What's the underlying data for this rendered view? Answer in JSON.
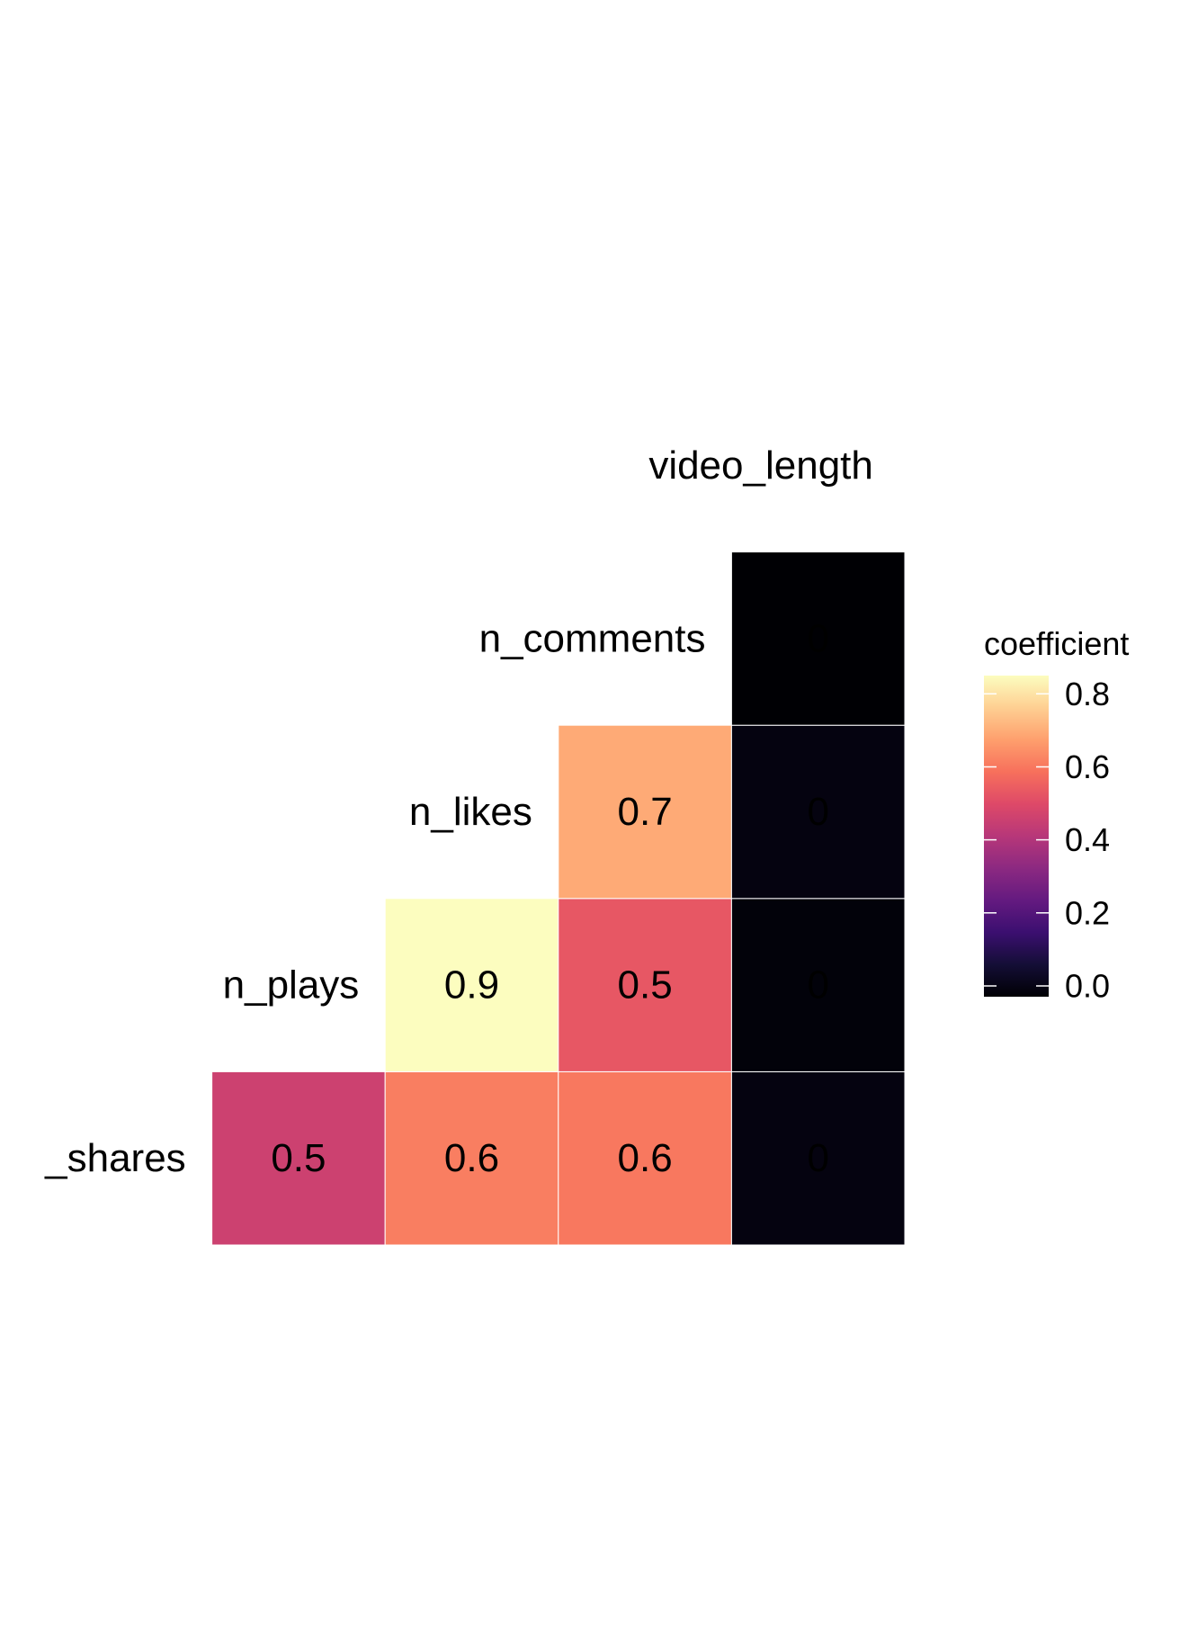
{
  "chart_data": {
    "type": "heatmap",
    "title": "",
    "variables": [
      "_shares",
      "n_plays",
      "n_likes",
      "n_comments",
      "video_length"
    ],
    "cells": [
      {
        "row": "_shares",
        "col": "n_plays",
        "value": 0.47,
        "label": "0.5"
      },
      {
        "row": "_shares",
        "col": "n_likes",
        "value": 0.62,
        "label": "0.6"
      },
      {
        "row": "_shares",
        "col": "n_comments",
        "value": 0.61,
        "label": "0.6"
      },
      {
        "row": "_shares",
        "col": "video_length",
        "value": 0.02,
        "label": "0"
      },
      {
        "row": "n_plays",
        "col": "n_likes",
        "value": 0.85,
        "label": "0.9"
      },
      {
        "row": "n_plays",
        "col": "n_comments",
        "value": 0.54,
        "label": "0.5"
      },
      {
        "row": "n_plays",
        "col": "video_length",
        "value": 0.01,
        "label": "0"
      },
      {
        "row": "n_likes",
        "col": "n_comments",
        "value": 0.7,
        "label": "0.7"
      },
      {
        "row": "n_likes",
        "col": "video_length",
        "value": 0.02,
        "label": "0"
      },
      {
        "row": "n_comments",
        "col": "video_length",
        "value": 0.0,
        "label": "0"
      }
    ],
    "legend": {
      "title": "coefficient",
      "position": "right",
      "min": 0.0,
      "max": 0.85,
      "ticks": [
        0.0,
        0.2,
        0.4,
        0.6,
        0.8
      ],
      "tick_labels": [
        "0.0",
        "0.2",
        "0.4",
        "0.6",
        "0.8"
      ],
      "colormap": "magma"
    }
  }
}
